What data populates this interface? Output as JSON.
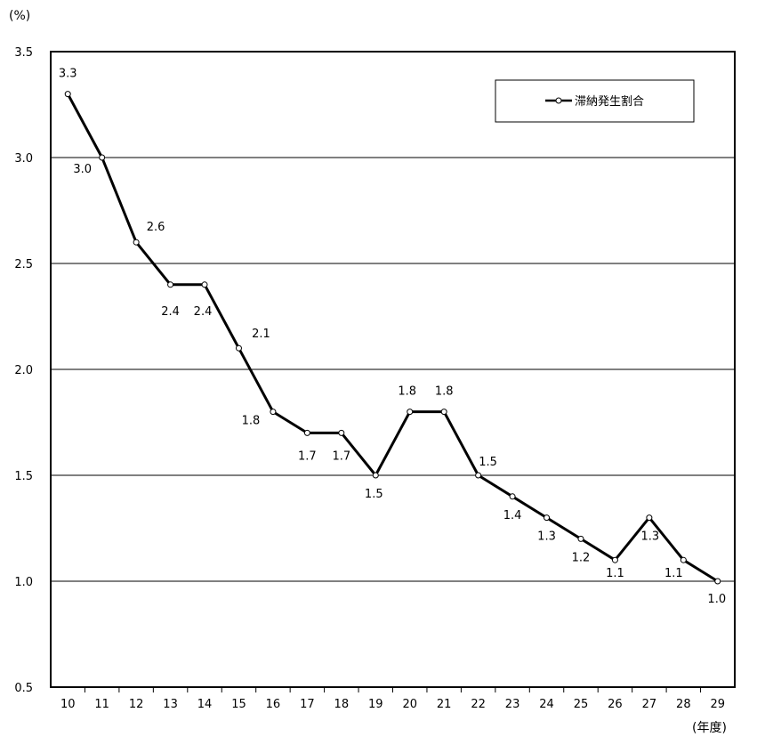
{
  "chart_data": {
    "type": "line",
    "y_unit_label": "(%)",
    "x_unit_label": "(年度)",
    "categories": [
      "10",
      "11",
      "12",
      "13",
      "14",
      "15",
      "16",
      "17",
      "18",
      "19",
      "20",
      "21",
      "22",
      "23",
      "24",
      "25",
      "26",
      "27",
      "28",
      "29"
    ],
    "series": [
      {
        "name": "滞納発生割合",
        "values": [
          3.3,
          3.0,
          2.6,
          2.4,
          2.4,
          2.1,
          1.8,
          1.7,
          1.7,
          1.5,
          1.8,
          1.8,
          1.5,
          1.4,
          1.3,
          1.2,
          1.1,
          1.3,
          1.1,
          1.0
        ],
        "data_labels": [
          "3.3",
          "3.0",
          "2.6",
          "2.4",
          "2.4",
          "2.1",
          "1.8",
          "1.7",
          "1.7",
          "1.5",
          "1.8",
          "1.8",
          "1.5",
          "1.4",
          "1.3",
          "1.2",
          "1.1",
          "1.3",
          "1.1",
          "1.0"
        ]
      }
    ],
    "y_ticks": [
      "0.5",
      "1.0",
      "1.5",
      "2.0",
      "2.5",
      "3.0",
      "3.5"
    ],
    "ylim": [
      0.5,
      3.5
    ],
    "grid": true,
    "legend_position": "top-right",
    "colors": {
      "line": "#000000",
      "marker_fill": "#ffffff",
      "grid": "#000000"
    }
  }
}
